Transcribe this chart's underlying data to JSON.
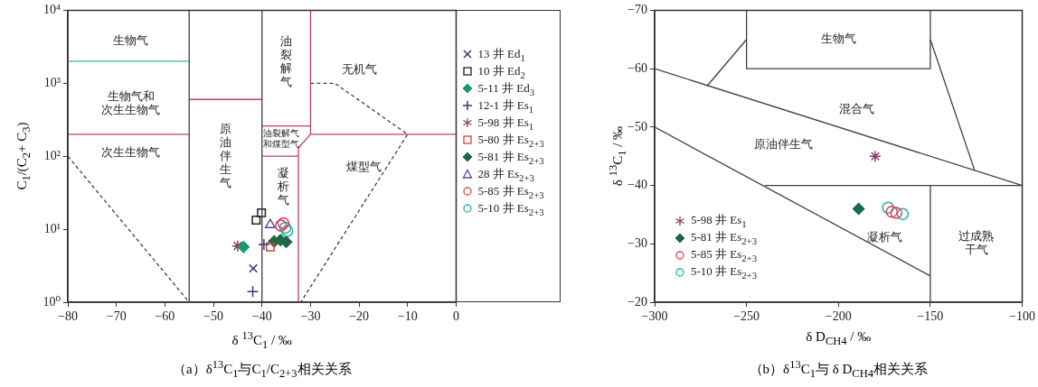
{
  "chart_data": [
    {
      "type": "scatter",
      "title": "（a）δ$^{13}$C$_{1}$与C$_{1}$/C$_{2+3}$相关关系",
      "xlabel": "δ $^{13}$C$_{1}$ / ‰",
      "ylabel": "C$_{1}$/(C$_{2}$+ C$_{3}$)",
      "log": "y",
      "xlim": [
        -80,
        0
      ],
      "ylim": [
        1,
        10000
      ],
      "xticks": [
        -80,
        -70,
        -60,
        -50,
        -40,
        -30,
        -20,
        -10,
        0
      ],
      "yticks": [
        {
          "value": 1,
          "label": "10⁰"
        },
        {
          "value": 10,
          "label": "10¹"
        },
        {
          "value": 100,
          "label": "10²"
        },
        {
          "value": 1000,
          "label": "10³"
        },
        {
          "value": 10000,
          "label": "10⁴"
        }
      ],
      "grid": false,
      "legend": "right",
      "series": [
        {
          "type": "line",
          "color": "#404040",
          "x": [
            -55,
            -55
          ],
          "values": [
            1,
            10000
          ]
        },
        {
          "type": "line",
          "color": "#404040",
          "x": [
            -40,
            -40
          ],
          "values": [
            1,
            10000
          ]
        },
        {
          "type": "line",
          "color": "#30b8a0",
          "x": [
            -80,
            -55
          ],
          "values": [
            2000,
            2000
          ]
        },
        {
          "type": "line",
          "color": "#c04060",
          "x": [
            -80,
            -55
          ],
          "values": [
            200,
            200
          ]
        },
        {
          "type": "line",
          "color": "#c04060",
          "x": [
            -55,
            -40
          ],
          "values": [
            600,
            600
          ]
        },
        {
          "type": "line",
          "color": "#c04060",
          "x": [
            -30,
            -30,
            -32.5,
            -32.5
          ],
          "values": [
            10000,
            200,
            130,
            1
          ]
        },
        {
          "type": "line",
          "color": "#c04060",
          "x": [
            -40,
            -30
          ],
          "values": [
            260,
            260
          ]
        },
        {
          "type": "line",
          "color": "#c04060",
          "x": [
            -40,
            -32.5
          ],
          "values": [
            100,
            100
          ]
        },
        {
          "type": "line",
          "color": "#c04060",
          "x": [
            -30,
            0
          ],
          "values": [
            200,
            200
          ]
        },
        {
          "type": "line",
          "color": "#404040",
          "line_style": "dashed",
          "x": [
            -80,
            -55
          ],
          "values": [
            100,
            1
          ]
        },
        {
          "type": "line",
          "color": "#404040",
          "line_style": "dashed",
          "x": [
            -30,
            -25,
            -10,
            -32
          ],
          "values": [
            1000,
            1000,
            200,
            1
          ]
        },
        {
          "name": "13 井 Ed$_{1}$",
          "color": "#3a3a6a",
          "marker": "cross",
          "x": [
            -41.8
          ],
          "values": [
            2.9
          ]
        },
        {
          "name": "10 井 Ed$_{2}$",
          "color": "#202020",
          "marker": "square",
          "x": [
            -40.1,
            -41.2
          ],
          "values": [
            16.8,
            13.3
          ]
        },
        {
          "name": "5-11 井 Ed$_{3}$",
          "color": "#1a9a6a",
          "marker": "diamond",
          "x": [
            -43.8
          ],
          "values": [
            5.7
          ]
        },
        {
          "name": "12-1 井 Es$_{1}$",
          "color": "#3a3a7a",
          "marker": "plus",
          "x": [
            -41.9,
            -39.6
          ],
          "values": [
            1.4,
            6.2
          ]
        },
        {
          "name": "5-98 井 Es$_{1}$",
          "color": "#8a3a6a",
          "x": [
            -45
          ],
          "values": [
            5.9
          ]
        },
        {
          "name": "5-80 井 Es$_{2+3}$",
          "color": "#d04040",
          "marker": "square",
          "x": [
            -38.3
          ],
          "values": [
            5.7
          ]
        },
        {
          "name": "5-81 井 Es$_{2+3}$",
          "color": "#1a6a40",
          "marker": "diamond",
          "x": [
            -37.5,
            -36.2,
            -35
          ],
          "values": [
            6.8,
            7.1,
            6.7
          ]
        },
        {
          "name": "28 井 Es$_{2+3}$",
          "color": "#5a4a9a",
          "marker": "triangle",
          "x": [
            -38.3
          ],
          "values": [
            11.5
          ]
        },
        {
          "name": "5-85 井 Es$_{2+3}$",
          "color": "#e04050",
          "marker": "circle",
          "x": [
            -35.6,
            -36.1
          ],
          "values": [
            12.1,
            11.2
          ]
        },
        {
          "name": "5-10 井 Es$_{2+3}$",
          "color": "#20b0b0",
          "marker": "circle",
          "x": [
            -35.2,
            -34.8
          ],
          "values": [
            10.5,
            9.5
          ]
        }
      ],
      "annotations": [
        "生物气",
        "生物气和次生生物气",
        "次生生物气",
        "原油伴生气",
        "油裂解气",
        "无机气",
        "油裂解气和煤型气",
        "凝析气",
        "煤型气"
      ]
    },
    {
      "type": "scatter",
      "title": "（b）δ$^{13}$C$_{1}$与 δ D$_{CH4}$相关关系",
      "xlabel": "δ D$_{CH4}$ / ‰",
      "ylabel": "δ $^{13}$C$_{1}$ / ‰",
      "xlim": [
        -300,
        -100
      ],
      "ylim": [
        -20,
        -70
      ],
      "xticks": [
        -300,
        -250,
        -200,
        -150,
        -100
      ],
      "yticks": [
        -70,
        -60,
        -50,
        -40,
        -30,
        -20
      ],
      "grid": false,
      "legend": "bottom left",
      "series": [
        {
          "type": "line",
          "color": "#404040",
          "x": [
            -300,
            -100
          ],
          "values": [
            -60,
            -40
          ]
        },
        {
          "type": "line",
          "color": "#404040",
          "x": [
            -300,
            -150
          ],
          "values": [
            -50,
            -24.5
          ]
        },
        {
          "type": "line",
          "color": "#404040",
          "x": [
            -240,
            -100
          ],
          "values": [
            -40,
            -40
          ]
        },
        {
          "type": "line",
          "color": "#404040",
          "x": [
            -150,
            -150
          ],
          "values": [
            -40,
            -20
          ]
        },
        {
          "type": "line",
          "color": "#404040",
          "x": [
            -250,
            -250,
            -150,
            -150
          ],
          "values": [
            -70,
            -60,
            -60,
            -70
          ]
        },
        {
          "type": "line",
          "color": "#404040",
          "x": [
            -271.5,
            -250
          ],
          "values": [
            -57,
            -65
          ]
        },
        {
          "type": "line",
          "color": "#404040",
          "x": [
            -150,
            -126
          ],
          "values": [
            -65,
            -42.7
          ]
        },
        {
          "name": "5-98 井 Es$_{1}$",
          "color": "#8a3a6a",
          "x": [
            -180
          ],
          "values": [
            -45
          ]
        },
        {
          "name": "5-81 井 Es$_{2+3}$",
          "color": "#1a6a40",
          "marker": "diamond",
          "x": [
            -189
          ],
          "values": [
            -36
          ]
        },
        {
          "name": "5-85 井 Es$_{2+3}$",
          "color": "#e04050",
          "marker": "circle",
          "x": [
            -171,
            -168.5
          ],
          "values": [
            -35.5,
            -35.3
          ]
        },
        {
          "name": "5-10 井 Es$_{2+3}$",
          "color": "#20b0b0",
          "marker": "circle",
          "x": [
            -173,
            -165
          ],
          "values": [
            -36.2,
            -35.1
          ]
        }
      ],
      "annotations": [
        "生物气",
        "混合气",
        "原油伴生气",
        "凝析气",
        "过成熟干气"
      ]
    }
  ]
}
